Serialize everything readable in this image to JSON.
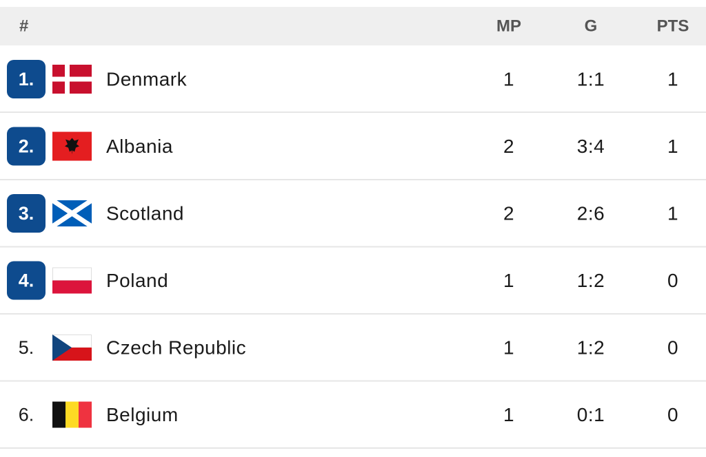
{
  "header": {
    "rank": "#",
    "mp": "MP",
    "g": "G",
    "pts": "PTS"
  },
  "table": {
    "rows": [
      {
        "rank": "1.",
        "team": "Denmark",
        "mp": 1,
        "g": "1:1",
        "pts": 1
      },
      {
        "rank": "2.",
        "team": "Albania",
        "mp": 2,
        "g": "3:4",
        "pts": 1
      },
      {
        "rank": "3.",
        "team": "Scotland",
        "mp": 2,
        "g": "2:6",
        "pts": 1
      },
      {
        "rank": "4.",
        "team": "Poland",
        "mp": 1,
        "g": "1:2",
        "pts": 0
      },
      {
        "rank": "5.",
        "team": "Czech Republic",
        "mp": 1,
        "g": "1:2",
        "pts": 0
      },
      {
        "rank": "6.",
        "team": "Belgium",
        "mp": 1,
        "g": "0:1",
        "pts": 0
      }
    ]
  }
}
